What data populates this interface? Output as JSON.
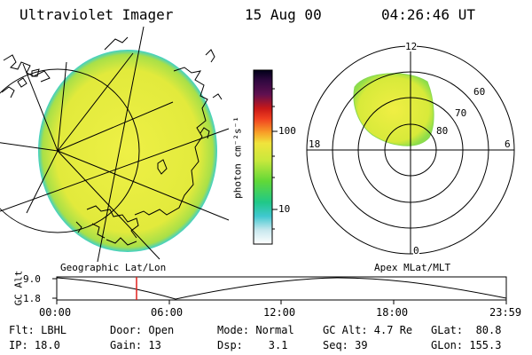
{
  "header": {
    "instrument": "Ultraviolet Imager",
    "date": "15 Aug 00",
    "time": "04:26:46 UT"
  },
  "colorbar": {
    "unit_label": "photon cm⁻²s⁻¹",
    "tick_labels": [
      "100",
      "10"
    ]
  },
  "polar_plot": {
    "mlt_labels": [
      "12",
      "18",
      "6",
      "0"
    ],
    "mlat_labels": [
      "60",
      "70",
      "80"
    ],
    "caption": "Apex MLat/MLT"
  },
  "geo_plot": {
    "caption": "Geographic Lat/Lon"
  },
  "altitude_plot": {
    "ylabel": "GC Alt",
    "y_ticks": [
      "9.0",
      "1.8"
    ],
    "x_ticks": [
      "00:00",
      "06:00",
      "12:00",
      "18:00",
      "23:59"
    ]
  },
  "info": {
    "filter": "Flt: LBHL",
    "ip": "IP: 18.0",
    "door": "Door: Open",
    "gain": "Gain: 13",
    "mode": "Mode: Normal",
    "dsp": "Dsp:    3.1",
    "gc_alt": "GC Alt: 4.7 Re",
    "seq": "Seq: 39",
    "glat": "GLat:  80.8",
    "glon": "GLon: 155.3"
  },
  "colors": {
    "image_fill": "#e8ec3e",
    "image_edge": "#3fd0c8",
    "current_time_marker": "#e0201c"
  }
}
